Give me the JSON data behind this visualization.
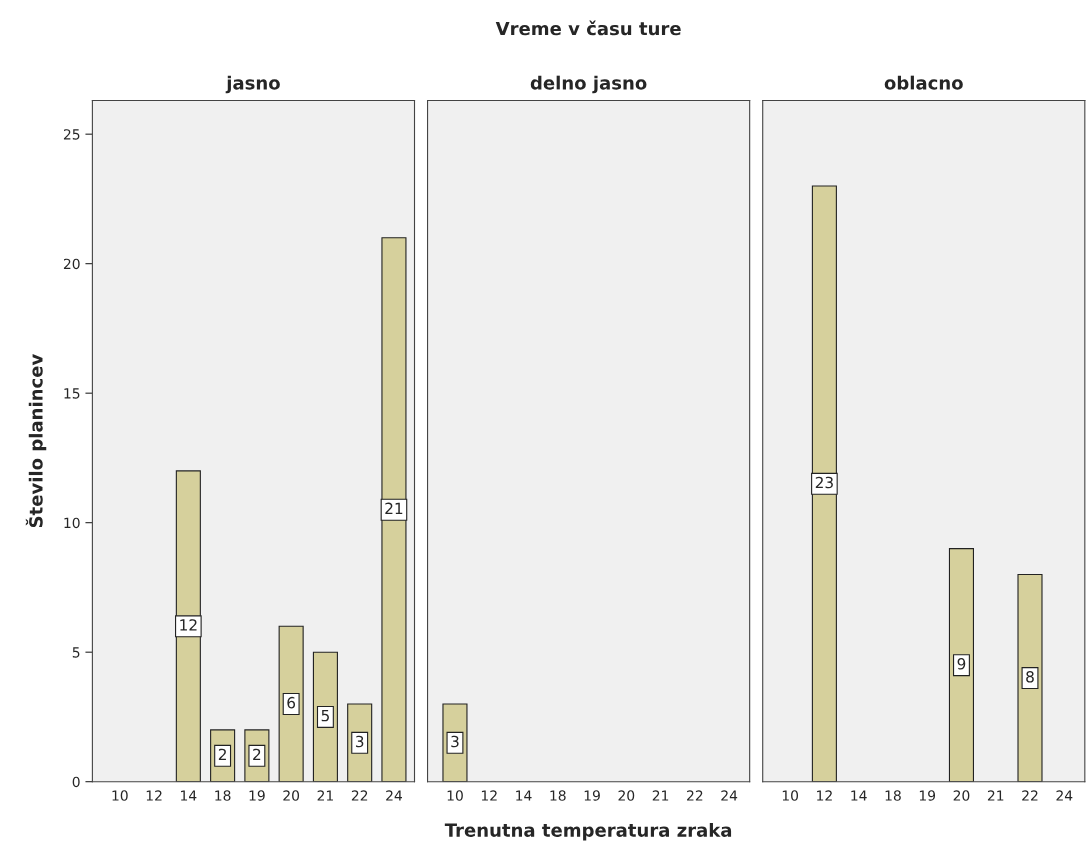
{
  "chart_data": [
    {
      "type": "bar",
      "title": "jasno",
      "ylabel": "Število planincev",
      "categories": [
        "10",
        "12",
        "14",
        "18",
        "19",
        "20",
        "21",
        "22",
        "24"
      ],
      "values": [
        null,
        null,
        12,
        2,
        2,
        6,
        5,
        3,
        21
      ],
      "color": "#d6d09c",
      "ylim": [
        0,
        26.3
      ],
      "yticks": [
        0,
        5,
        10,
        15,
        20,
        25
      ],
      "data_labels": true,
      "grid": false
    },
    {
      "type": "bar",
      "title": "delno jasno",
      "xlabel": "Trenutna temperatura zraka",
      "annotations": [
        "Vreme v času ture"
      ],
      "categories": [
        "10",
        "12",
        "14",
        "18",
        "19",
        "20",
        "21",
        "22",
        "24"
      ],
      "values": [
        3,
        null,
        null,
        null,
        null,
        null,
        null,
        null,
        null
      ],
      "color": "#d6d09c",
      "ylim": [
        0,
        26.3
      ],
      "tick_labels": "x",
      "data_labels": true,
      "grid": false
    },
    {
      "type": "bar",
      "title": "oblacno",
      "categories": [
        "10",
        "12",
        "14",
        "18",
        "19",
        "20",
        "21",
        "22",
        "24"
      ],
      "values": [
        null,
        23,
        null,
        null,
        null,
        9,
        null,
        8,
        null
      ],
      "color": "#d6d09c",
      "ylim": [
        0,
        26.3
      ],
      "tick_labels": "x",
      "data_labels": true,
      "grid": false
    }
  ]
}
